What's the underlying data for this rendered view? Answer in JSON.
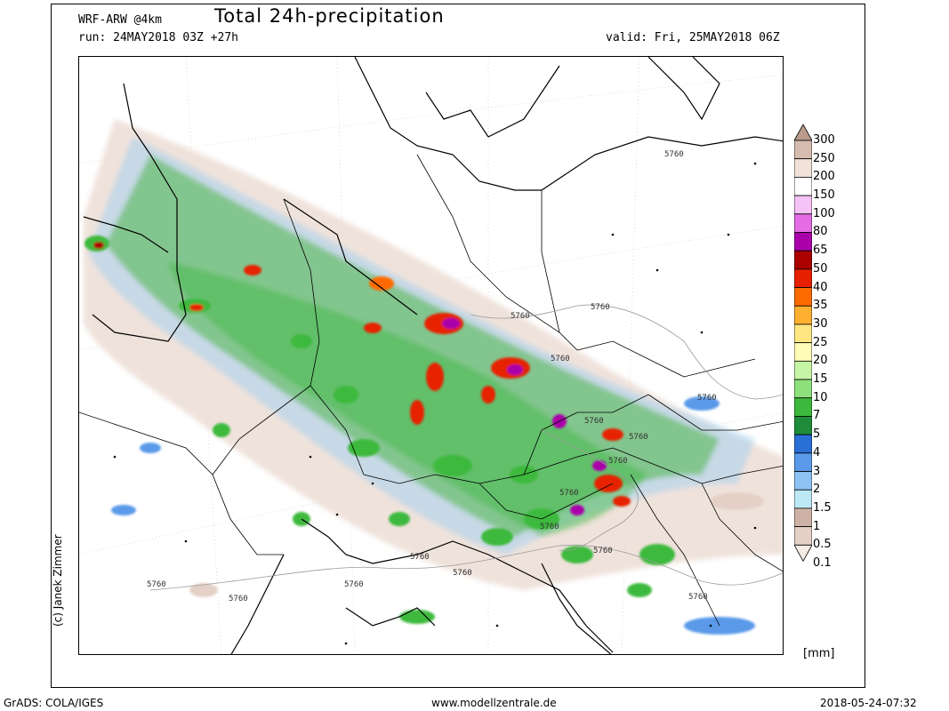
{
  "header": {
    "model": "WRF-ARW @4km",
    "title": "Total 24h-precipitation",
    "run": "run: 24MAY2018 03Z +27h",
    "valid": "valid: Fri, 25MAY2018 06Z"
  },
  "credit": "(c) Janek Zimmer",
  "legend": {
    "unit": "[mm]",
    "levels": [
      {
        "label": "300",
        "color": "#b99b8c"
      },
      {
        "label": "250",
        "color": "#d5bcae"
      },
      {
        "label": "200",
        "color": "#f2e3da"
      },
      {
        "label": "150",
        "color": "#ffffff"
      },
      {
        "label": "100",
        "color": "#f6c3f6"
      },
      {
        "label": "80",
        "color": "#e46ce4"
      },
      {
        "label": "65",
        "color": "#aa00aa"
      },
      {
        "label": "50",
        "color": "#aa0000"
      },
      {
        "label": "40",
        "color": "#e62000"
      },
      {
        "label": "35",
        "color": "#ff6a00"
      },
      {
        "label": "30",
        "color": "#ffb030"
      },
      {
        "label": "25",
        "color": "#ffe680"
      },
      {
        "label": "20",
        "color": "#fffcb8"
      },
      {
        "label": "15",
        "color": "#c6f5a6"
      },
      {
        "label": "10",
        "color": "#8ee07c"
      },
      {
        "label": "7",
        "color": "#3cb93c"
      },
      {
        "label": "5",
        "color": "#1e8c3a"
      },
      {
        "label": "4",
        "color": "#2a6fd6"
      },
      {
        "label": "3",
        "color": "#5a9ae8"
      },
      {
        "label": "2",
        "color": "#8ec2f2"
      },
      {
        "label": "1.5",
        "color": "#bde8f6"
      },
      {
        "label": "1",
        "color": "#ceb2a6"
      },
      {
        "label": "0.5",
        "color": "#e4d0c6"
      },
      {
        "label": "0.1",
        "color": "#f6ece6"
      }
    ]
  },
  "contour_labels": [
    "5760",
    "5760",
    "5760",
    "5760",
    "5760",
    "5760",
    "5760",
    "5760",
    "5760",
    "5760",
    "5760",
    "5760",
    "5760",
    "5760",
    "5760",
    "5760",
    "5760"
  ],
  "footer": {
    "left": "GrADS: COLA/IGES",
    "center": "www.modellzentrale.de",
    "right": "2018-05-24-07:32"
  }
}
